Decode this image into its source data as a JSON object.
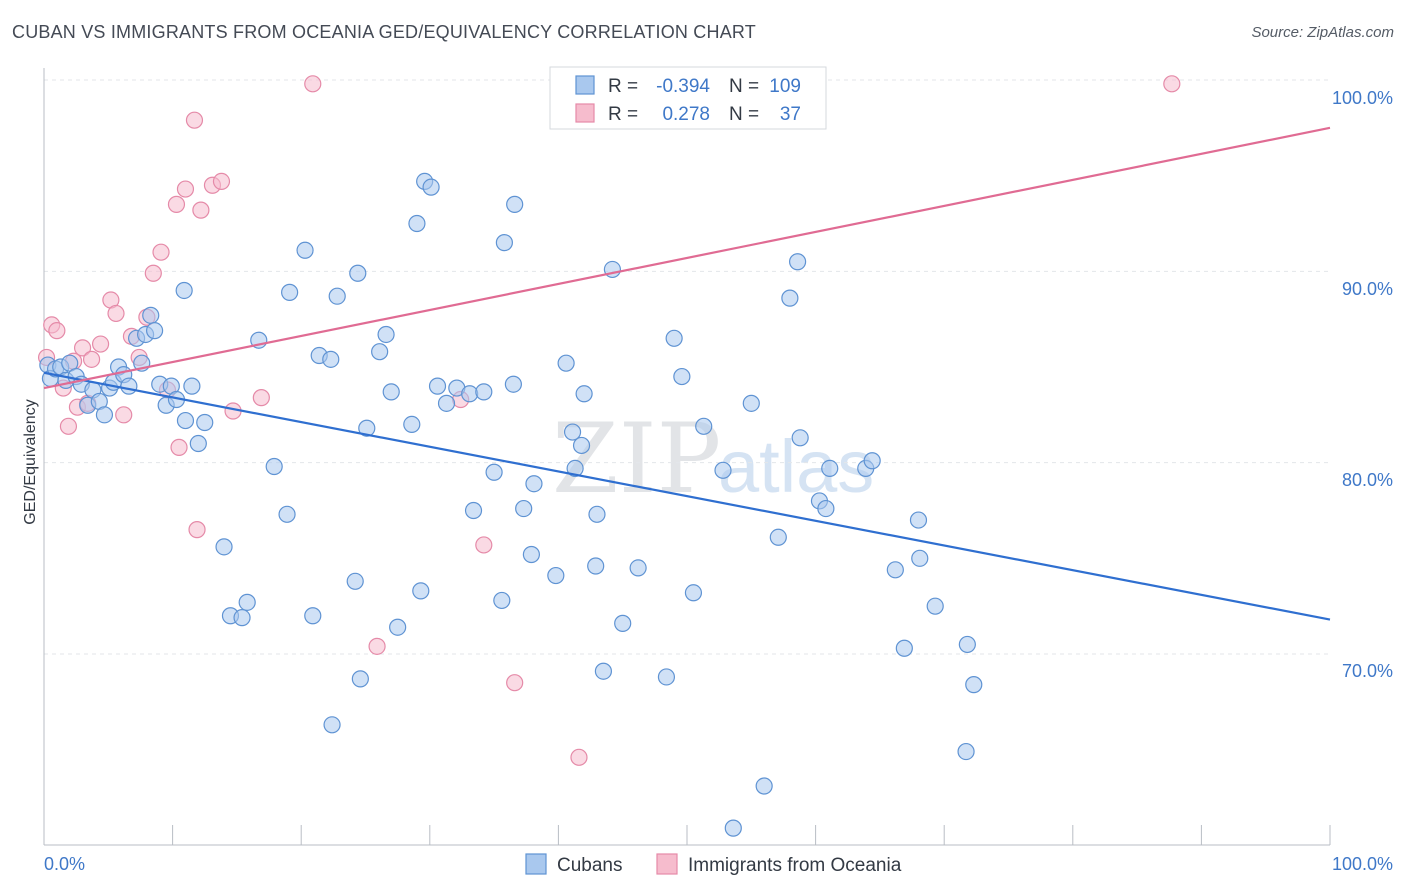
{
  "title": "CUBAN VS IMMIGRANTS FROM OCEANIA GED/EQUIVALENCY CORRELATION CHART",
  "source": "Source: ZipAtlas.com",
  "watermark": {
    "zip": "ZIP",
    "atlas": "atlas"
  },
  "legend": {
    "r_label": "R =",
    "n_label": "N =",
    "cubans": {
      "r": "-0.394",
      "n": "109"
    },
    "oceania": {
      "r": "0.278",
      "n": "37"
    }
  },
  "colors": {
    "cubans_fill": "#a9c8ee",
    "cubans_stroke": "#5f93d3",
    "cubans_line": "#2f6fd0",
    "oceania_fill": "#f6bccd",
    "oceania_stroke": "#e58aa8",
    "oceania_line": "#e06b93",
    "tick_text": "#3f78c8",
    "grid": "#e3e6ea"
  },
  "chart_data": {
    "type": "scatter",
    "title": "CUBAN VS IMMIGRANTS FROM OCEANIA GED/EQUIVALENCY CORRELATION CHART",
    "xlabel": "",
    "ylabel": "GED/Equivalency",
    "x_tick_labels": [
      "0.0%",
      "100.0%"
    ],
    "y_tick_labels": [
      "100.0%",
      "90.0%",
      "80.0%",
      "70.0%"
    ],
    "y_ticks": [
      100,
      90,
      80,
      70
    ],
    "xlim": [
      0,
      100
    ],
    "ylim": [
      60.5,
      100.6
    ],
    "series": [
      {
        "name": "Cubans",
        "color": "#a9c8ee",
        "trend": {
          "x": [
            0,
            100
          ],
          "y": [
            84.7,
            71.8
          ]
        },
        "points": [
          [
            0.3,
            85.1
          ],
          [
            0.5,
            84.4
          ],
          [
            0.9,
            84.9
          ],
          [
            1.3,
            85.0
          ],
          [
            1.7,
            84.3
          ],
          [
            2.0,
            85.2
          ],
          [
            2.5,
            84.5
          ],
          [
            2.9,
            84.1
          ],
          [
            3.4,
            83.0
          ],
          [
            3.8,
            83.8
          ],
          [
            4.3,
            83.2
          ],
          [
            4.7,
            82.5
          ],
          [
            5.1,
            83.9
          ],
          [
            5.4,
            84.2
          ],
          [
            5.8,
            85.0
          ],
          [
            6.2,
            84.6
          ],
          [
            6.6,
            84.0
          ],
          [
            7.2,
            86.5
          ],
          [
            7.6,
            85.2
          ],
          [
            7.9,
            86.7
          ],
          [
            8.3,
            87.7
          ],
          [
            8.6,
            86.9
          ],
          [
            9.0,
            84.1
          ],
          [
            9.5,
            83.0
          ],
          [
            9.9,
            84.0
          ],
          [
            10.3,
            83.3
          ],
          [
            10.9,
            89.0
          ],
          [
            11.5,
            84.0
          ],
          [
            11.0,
            82.2
          ],
          [
            12.0,
            81.0
          ],
          [
            12.5,
            82.1
          ],
          [
            14.0,
            75.6
          ],
          [
            14.5,
            72.0
          ],
          [
            15.4,
            71.9
          ],
          [
            15.8,
            72.7
          ],
          [
            16.7,
            86.4
          ],
          [
            17.9,
            79.8
          ],
          [
            18.9,
            77.3
          ],
          [
            19.1,
            88.9
          ],
          [
            20.3,
            91.1
          ],
          [
            20.9,
            72.0
          ],
          [
            21.4,
            85.6
          ],
          [
            22.3,
            85.4
          ],
          [
            22.8,
            88.7
          ],
          [
            22.4,
            66.3
          ],
          [
            24.4,
            89.9
          ],
          [
            24.2,
            73.8
          ],
          [
            24.6,
            68.7
          ],
          [
            25.1,
            81.8
          ],
          [
            26.1,
            85.8
          ],
          [
            26.6,
            86.7
          ],
          [
            27.0,
            83.7
          ],
          [
            27.5,
            71.4
          ],
          [
            28.6,
            82.0
          ],
          [
            29.0,
            92.5
          ],
          [
            29.6,
            94.7
          ],
          [
            29.3,
            73.3
          ],
          [
            30.1,
            94.4
          ],
          [
            30.6,
            84.0
          ],
          [
            31.3,
            83.1
          ],
          [
            32.1,
            83.9
          ],
          [
            33.1,
            83.6
          ],
          [
            33.4,
            77.5
          ],
          [
            34.2,
            83.7
          ],
          [
            35.0,
            79.5
          ],
          [
            35.6,
            72.8
          ],
          [
            35.8,
            91.5
          ],
          [
            36.5,
            84.1
          ],
          [
            36.6,
            93.5
          ],
          [
            37.3,
            77.6
          ],
          [
            37.9,
            75.2
          ],
          [
            38.1,
            78.9
          ],
          [
            39.8,
            74.1
          ],
          [
            40.6,
            85.2
          ],
          [
            41.1,
            81.6
          ],
          [
            41.3,
            79.7
          ],
          [
            41.8,
            80.9
          ],
          [
            42.0,
            83.6
          ],
          [
            42.9,
            74.6
          ],
          [
            43.0,
            77.3
          ],
          [
            43.5,
            69.1
          ],
          [
            44.2,
            90.1
          ],
          [
            45.0,
            71.6
          ],
          [
            46.2,
            74.5
          ],
          [
            48.4,
            68.8
          ],
          [
            49.0,
            86.5
          ],
          [
            49.6,
            84.5
          ],
          [
            50.5,
            73.2
          ],
          [
            51.3,
            81.9
          ],
          [
            52.8,
            79.6
          ],
          [
            55.0,
            83.1
          ],
          [
            56.0,
            63.1
          ],
          [
            57.1,
            76.1
          ],
          [
            58.0,
            88.6
          ],
          [
            58.6,
            90.5
          ],
          [
            58.8,
            81.3
          ],
          [
            60.3,
            78.0
          ],
          [
            60.8,
            77.6
          ],
          [
            61.1,
            79.7
          ],
          [
            63.9,
            79.7
          ],
          [
            64.4,
            80.1
          ],
          [
            66.9,
            70.3
          ],
          [
            66.2,
            74.4
          ],
          [
            68.0,
            77.0
          ],
          [
            68.1,
            75.0
          ],
          [
            69.3,
            72.5
          ],
          [
            71.8,
            70.5
          ],
          [
            72.3,
            68.4
          ],
          [
            71.7,
            64.9
          ],
          [
            53.6,
            60.9
          ]
        ]
      },
      {
        "name": "Immigrants from Oceania",
        "color": "#f6bccd",
        "trend": {
          "x": [
            0,
            100
          ],
          "y": [
            83.9,
            97.5
          ]
        },
        "points": [
          [
            0.2,
            85.5
          ],
          [
            0.6,
            87.2
          ],
          [
            1.0,
            86.9
          ],
          [
            1.5,
            83.9
          ],
          [
            1.9,
            81.9
          ],
          [
            2.3,
            85.3
          ],
          [
            2.6,
            82.9
          ],
          [
            3.0,
            86.0
          ],
          [
            3.4,
            83.1
          ],
          [
            3.7,
            85.4
          ],
          [
            4.4,
            86.2
          ],
          [
            5.2,
            88.5
          ],
          [
            5.6,
            87.8
          ],
          [
            6.2,
            82.5
          ],
          [
            6.8,
            86.6
          ],
          [
            7.4,
            85.5
          ],
          [
            8.0,
            87.6
          ],
          [
            8.5,
            89.9
          ],
          [
            9.1,
            91.0
          ],
          [
            9.6,
            83.8
          ],
          [
            10.3,
            93.5
          ],
          [
            10.5,
            80.8
          ],
          [
            11.0,
            94.3
          ],
          [
            11.7,
            97.9
          ],
          [
            11.9,
            76.5
          ],
          [
            12.2,
            93.2
          ],
          [
            13.1,
            94.5
          ],
          [
            13.8,
            94.7
          ],
          [
            14.7,
            82.7
          ],
          [
            16.9,
            83.4
          ],
          [
            20.9,
            99.8
          ],
          [
            25.9,
            70.4
          ],
          [
            32.4,
            83.3
          ],
          [
            34.2,
            75.7
          ],
          [
            36.6,
            68.5
          ],
          [
            41.6,
            64.6
          ],
          [
            87.7,
            99.8
          ]
        ]
      }
    ]
  },
  "bottom_legend": {
    "cubans": "Cubans",
    "oceania": "Immigrants from Oceania"
  }
}
